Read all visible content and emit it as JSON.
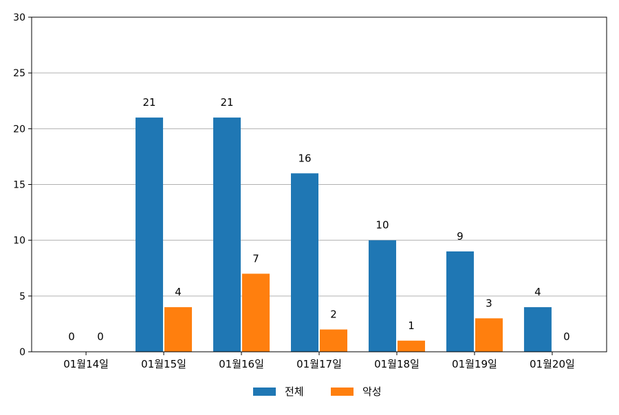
{
  "chart_data": {
    "type": "bar",
    "title": "",
    "xlabel": "",
    "ylabel": "",
    "categories": [
      "01월14일",
      "01월15일",
      "01월16일",
      "01월17일",
      "01월18일",
      "01월19일",
      "01월20일"
    ],
    "series": [
      {
        "name": "전체",
        "values": [
          0,
          21,
          21,
          16,
          10,
          9,
          4
        ],
        "color": "#1f77b4"
      },
      {
        "name": "악성",
        "values": [
          0,
          4,
          7,
          2,
          1,
          3,
          0
        ],
        "color": "#ff7f0e"
      }
    ],
    "ylim": [
      0,
      30
    ],
    "yticks": [
      0,
      5,
      10,
      15,
      20,
      25,
      30
    ],
    "grid": "y",
    "legend_position": "bottom-center"
  }
}
